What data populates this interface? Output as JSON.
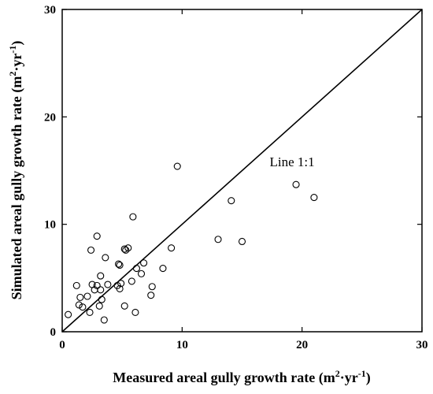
{
  "chart_data": {
    "type": "scatter",
    "title": "",
    "xlabel": {
      "prefix": "Measured areal gully growth rate (m",
      "sup1": "2",
      "mid": "·yr",
      "sup2": "-1",
      "suffix": ")"
    },
    "ylabel": {
      "prefix": "Simulated areal gully growth rate (m",
      "sup1": "2",
      "mid": "·yr",
      "sup2": "-1",
      "suffix": ")"
    },
    "xlim": [
      0,
      30
    ],
    "ylim": [
      0,
      30
    ],
    "xticks": [
      "0",
      "10",
      "20",
      "30"
    ],
    "yticks": [
      "0",
      "10",
      "20",
      "30"
    ],
    "grid": false,
    "marker": "open-circle",
    "reference_line": {
      "label": "Line 1:1",
      "from": [
        0,
        0
      ],
      "to": [
        30,
        30
      ]
    },
    "series": [
      {
        "points": [
          [
            0.5,
            1.6
          ],
          [
            1.2,
            4.3
          ],
          [
            1.4,
            2.5
          ],
          [
            1.5,
            3.2
          ],
          [
            1.7,
            2.3
          ],
          [
            2.1,
            3.3
          ],
          [
            2.3,
            1.8
          ],
          [
            2.4,
            7.6
          ],
          [
            2.5,
            4.4
          ],
          [
            2.7,
            3.9
          ],
          [
            2.9,
            8.9
          ],
          [
            2.9,
            4.3
          ],
          [
            3.1,
            2.4
          ],
          [
            3.2,
            3.9
          ],
          [
            3.2,
            5.2
          ],
          [
            3.3,
            3.0
          ],
          [
            3.5,
            1.1
          ],
          [
            3.6,
            6.9
          ],
          [
            3.8,
            4.4
          ],
          [
            4.6,
            4.3
          ],
          [
            4.7,
            6.3
          ],
          [
            4.8,
            4.0
          ],
          [
            4.8,
            6.2
          ],
          [
            4.9,
            4.5
          ],
          [
            5.2,
            7.7
          ],
          [
            5.2,
            2.4
          ],
          [
            5.3,
            7.6
          ],
          [
            5.5,
            7.8
          ],
          [
            5.8,
            4.7
          ],
          [
            5.9,
            10.7
          ],
          [
            6.1,
            1.8
          ],
          [
            6.2,
            5.9
          ],
          [
            6.6,
            5.4
          ],
          [
            6.8,
            6.4
          ],
          [
            7.4,
            3.4
          ],
          [
            7.5,
            4.2
          ],
          [
            8.4,
            5.9
          ],
          [
            9.1,
            7.8
          ],
          [
            9.6,
            15.4
          ],
          [
            13.0,
            8.6
          ],
          [
            14.1,
            12.2
          ],
          [
            15.0,
            8.4
          ],
          [
            19.5,
            13.7
          ],
          [
            21.0,
            12.5
          ]
        ]
      }
    ]
  }
}
